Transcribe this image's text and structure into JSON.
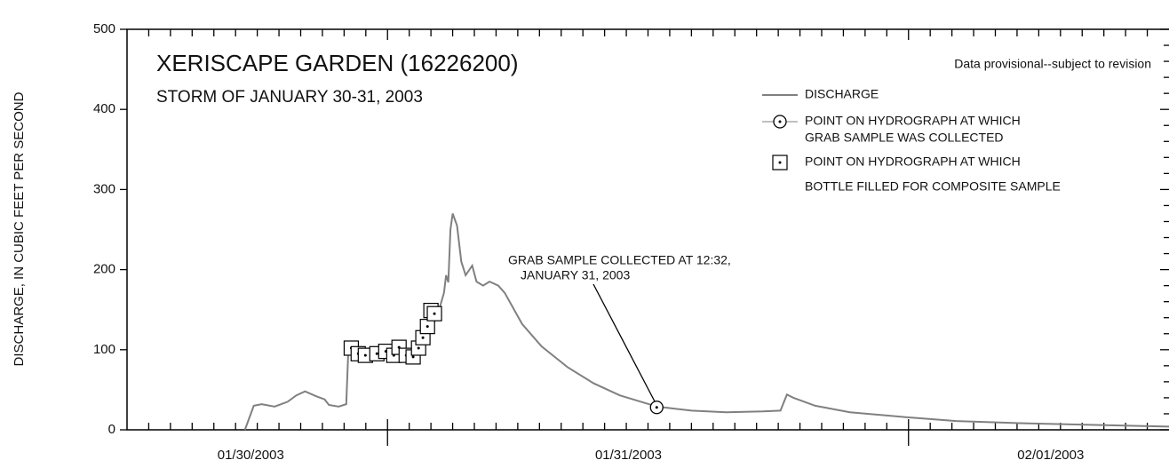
{
  "chart_data": {
    "type": "line",
    "title": "XERISCAPE GARDEN (16226200)",
    "subtitle": "STORM OF JANUARY 30-31, 2003",
    "note": "Data provisional--subject to revision",
    "y_label": "DISCHARGE, IN CUBIC FEET PER SECOND",
    "annotation": [
      "GRAB SAMPLE COLLECTED AT 12:32,",
      "JANUARY 31, 2003"
    ],
    "xlim": [
      12,
      60
    ],
    "ylim": [
      0,
      500
    ],
    "yticks": [
      0,
      100,
      200,
      300,
      400,
      500
    ],
    "y_minor_ticks": [
      20,
      40,
      60,
      80,
      120,
      140,
      160,
      180,
      220,
      240,
      260,
      280,
      320,
      340,
      360,
      380,
      420,
      440,
      460,
      480
    ],
    "xticks": [
      {
        "value": 17.7,
        "label": "01/30/2003"
      },
      {
        "value": 35.1,
        "label": "01/31/2003"
      },
      {
        "value": 54.55,
        "label": "02/01/2003"
      }
    ],
    "x_major_ticks": [
      24,
      48
    ],
    "x_minor_ticks": [
      13,
      14,
      15,
      16,
      17,
      18,
      19,
      20,
      21,
      22,
      23,
      25,
      26,
      27,
      28,
      29,
      30,
      31,
      32,
      33,
      34,
      35,
      36,
      37,
      38,
      39,
      40,
      41,
      42,
      43,
      44,
      45,
      46,
      47,
      49,
      50,
      51,
      52,
      53,
      54,
      55,
      56,
      57,
      58,
      59
    ],
    "series": [
      {
        "name": [
          "DISCHARGE"
        ],
        "color": "#808080",
        "marker": "line",
        "x": [
          17.43,
          17.84,
          18.2,
          18.8,
          19.4,
          19.8,
          20.2,
          20.7,
          21.1,
          21.3,
          21.75,
          22.1,
          22.2,
          22.5,
          23.3,
          24.1,
          24.9,
          25.3,
          25.7,
          26.0,
          26.3,
          26.6,
          26.7,
          26.8,
          26.9,
          27.0,
          27.2,
          27.4,
          27.6,
          27.9,
          28.1,
          28.4,
          28.7,
          29.1,
          29.4,
          30.2,
          31.1,
          32.3,
          33.5,
          34.7,
          36.4,
          38.0,
          39.6,
          41.3,
          42.1,
          42.4,
          42.7,
          43.7,
          45.3,
          47.8,
          50.2,
          53.5,
          56.8,
          60
        ],
        "values": [
          0,
          30,
          32,
          29,
          35,
          43,
          48,
          42,
          38,
          31,
          29,
          32,
          104,
          93,
          95,
          95,
          98,
          93,
          110,
          126,
          143,
          171,
          193,
          184,
          250,
          270,
          255,
          210,
          193,
          205,
          185,
          180,
          185,
          180,
          171,
          132,
          104,
          78,
          58,
          43,
          29,
          24,
          22,
          23,
          24,
          44,
          40,
          30,
          22,
          16,
          11,
          8,
          6,
          4
        ]
      },
      {
        "name": [
          "POINT ON HYDROGRAPH AT WHICH",
          "GRAB SAMPLE WAS COLLECTED"
        ],
        "color": "#000000",
        "marker": "circle",
        "x": [
          36.4
        ],
        "values": [
          28
        ]
      },
      {
        "name": [
          "POINT ON HYDROGRAPH AT WHICH",
          "BOTTLE FILLED FOR COMPOSITE SAMPLE"
        ],
        "color": "#000000",
        "marker": "square",
        "x": [
          22.33,
          22.65,
          22.98,
          23.51,
          23.92,
          24.29,
          24.53,
          24.86,
          25.18,
          25.43,
          25.63,
          25.84,
          26.0,
          26.16
        ],
        "values": [
          102,
          95,
          93,
          95,
          98,
          93,
          103,
          93,
          91,
          102,
          115,
          129,
          149,
          145
        ]
      }
    ]
  }
}
